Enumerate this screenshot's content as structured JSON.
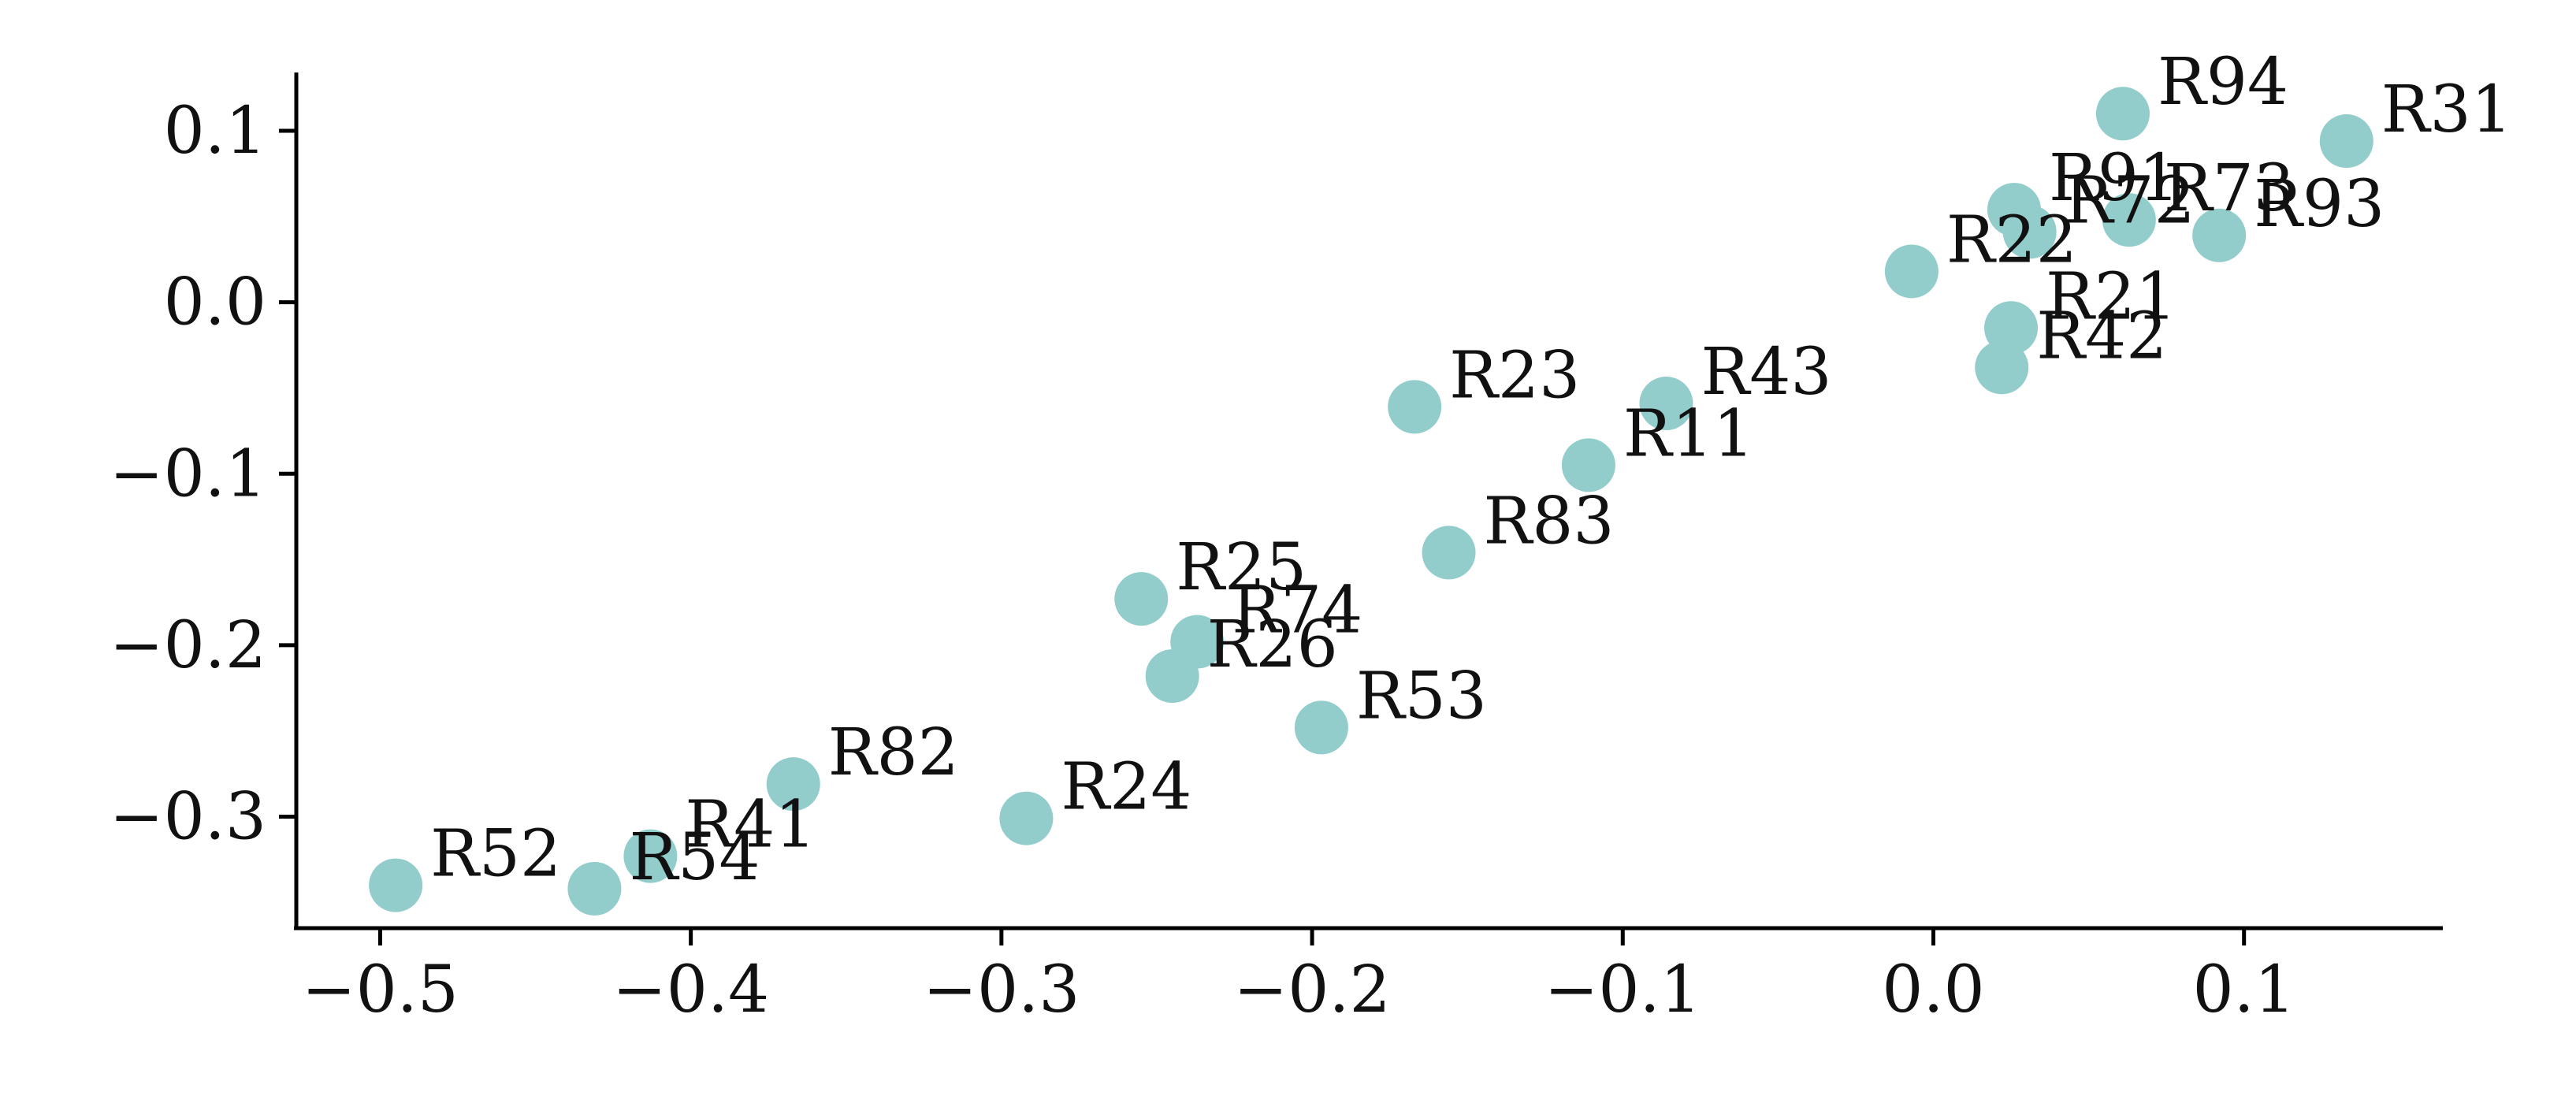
{
  "chart_data": {
    "type": "scatter",
    "title": "",
    "xlabel": "",
    "ylabel": "",
    "xlim": [
      -0.527,
      0.164
    ],
    "ylim": [
      -0.365,
      0.134
    ],
    "grid": false,
    "legend": "none",
    "point_color": "#92cdcb",
    "x_ticks": [
      {
        "value": -0.5,
        "label": "−0.5"
      },
      {
        "value": -0.4,
        "label": "−0.4"
      },
      {
        "value": -0.3,
        "label": "−0.3"
      },
      {
        "value": -0.2,
        "label": "−0.2"
      },
      {
        "value": -0.1,
        "label": "−0.1"
      },
      {
        "value": 0.0,
        "label": "0.0"
      },
      {
        "value": 0.1,
        "label": "0.1"
      }
    ],
    "y_ticks": [
      {
        "value": 0.1,
        "label": "0.1"
      },
      {
        "value": 0.0,
        "label": "0.0"
      },
      {
        "value": -0.1,
        "label": "−0.1"
      },
      {
        "value": -0.2,
        "label": "−0.2"
      },
      {
        "value": -0.3,
        "label": "−0.3"
      }
    ],
    "points": [
      {
        "label": "R94",
        "x": 0.061,
        "y": 0.11
      },
      {
        "label": "R31",
        "x": 0.133,
        "y": 0.094
      },
      {
        "label": "R91",
        "x": 0.026,
        "y": 0.054
      },
      {
        "label": "R72",
        "x": 0.031,
        "y": 0.041
      },
      {
        "label": "R73",
        "x": 0.063,
        "y": 0.048
      },
      {
        "label": "R93",
        "x": 0.092,
        "y": 0.039
      },
      {
        "label": "R22",
        "x": -0.007,
        "y": 0.018
      },
      {
        "label": "R21",
        "x": 0.025,
        "y": -0.015
      },
      {
        "label": "R42",
        "x": 0.022,
        "y": -0.038
      },
      {
        "label": "R23",
        "x": -0.167,
        "y": -0.061
      },
      {
        "label": "R43",
        "x": -0.086,
        "y": -0.059
      },
      {
        "label": "R11",
        "x": -0.111,
        "y": -0.095
      },
      {
        "label": "R83",
        "x": -0.156,
        "y": -0.146
      },
      {
        "label": "R25",
        "x": -0.255,
        "y": -0.173
      },
      {
        "label": "R74",
        "x": -0.237,
        "y": -0.198
      },
      {
        "label": "R26",
        "x": -0.245,
        "y": -0.218
      },
      {
        "label": "R53",
        "x": -0.197,
        "y": -0.248
      },
      {
        "label": "R82",
        "x": -0.367,
        "y": -0.281
      },
      {
        "label": "R24",
        "x": -0.292,
        "y": -0.301
      },
      {
        "label": "R41",
        "x": -0.413,
        "y": -0.323
      },
      {
        "label": "R54",
        "x": -0.431,
        "y": -0.342
      },
      {
        "label": "R52",
        "x": -0.495,
        "y": -0.34
      }
    ]
  }
}
